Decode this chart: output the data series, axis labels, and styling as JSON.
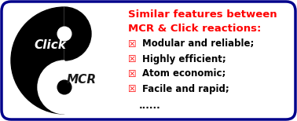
{
  "title_line1": "Similar features between",
  "title_line2": "MCR & Click reactions:",
  "title_color": "#FF0000",
  "title_fontsize": 9.5,
  "bullet_color": "#FF0000",
  "bullet_symbol": "☒",
  "items": [
    "Modular and reliable;",
    "Highly efficient;",
    "Atom economic;",
    "Facile and rapid;"
  ],
  "dots": "......",
  "item_fontsize": 8.5,
  "item_color": "#000000",
  "bg_color": "#FFFFFF",
  "border_color": "#00008B",
  "border_lw": 2.5,
  "click_label": "Click",
  "mcr_label": "MCR",
  "label_color_white": "#FFFFFF",
  "label_color_black": "#1a1a1a"
}
